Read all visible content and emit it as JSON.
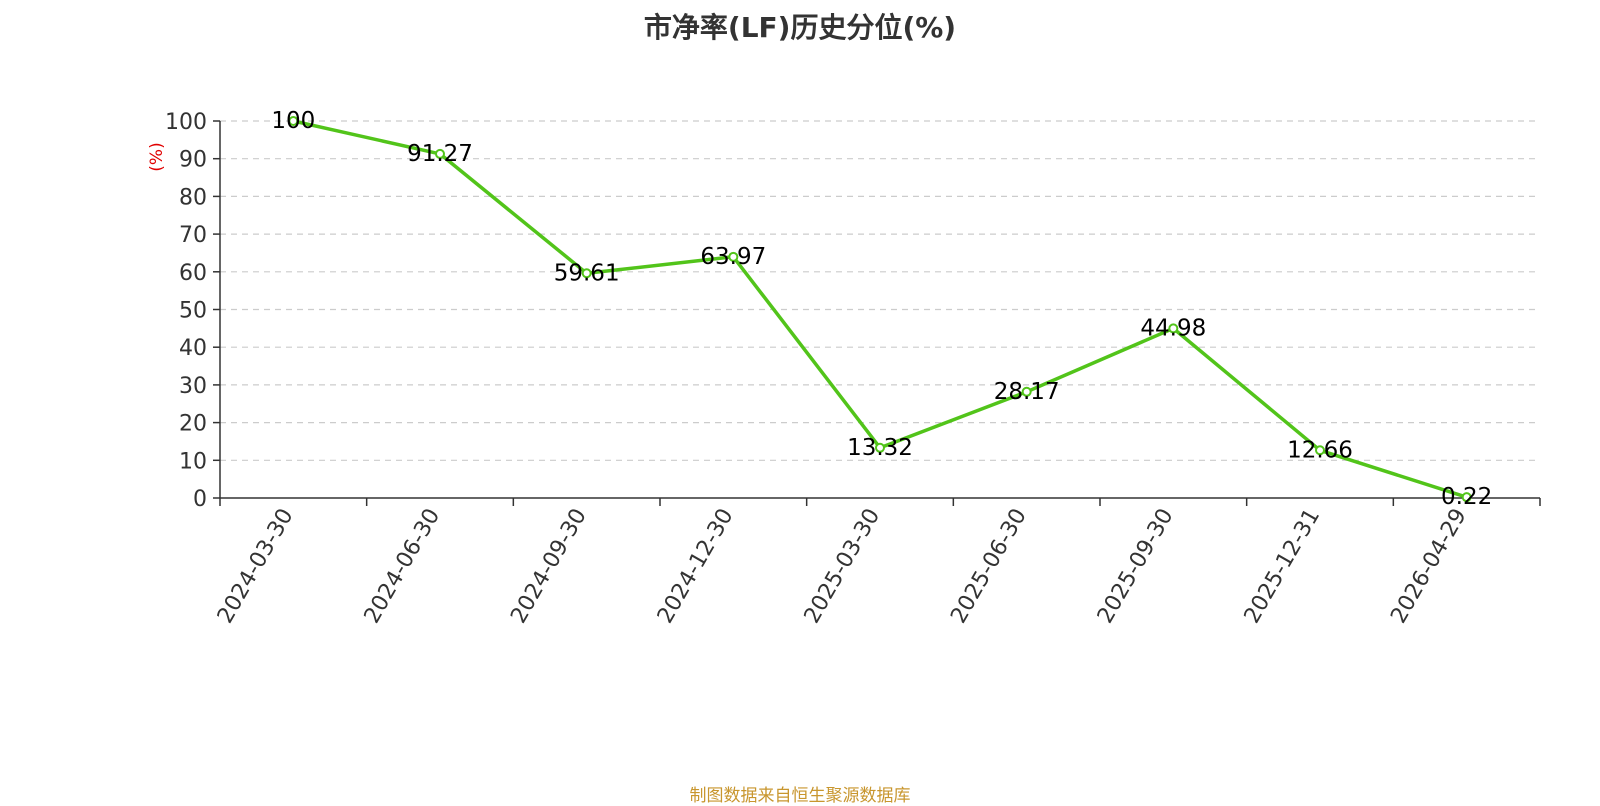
{
  "chart_data": {
    "type": "line",
    "title": "市净率(LF)历史分位(%)",
    "ylabel": "(%)",
    "xlabel": "",
    "ylim": [
      0,
      100
    ],
    "yticks": [
      0,
      10,
      20,
      30,
      40,
      50,
      60,
      70,
      80,
      90,
      100
    ],
    "grid": true,
    "categories": [
      "2024-03-30",
      "2024-06-30",
      "2024-09-30",
      "2024-12-30",
      "2025-03-30",
      "2025-06-30",
      "2025-09-30",
      "2025-12-31",
      "2026-04-29"
    ],
    "series": [
      {
        "values": [
          100,
          91.27,
          59.61,
          63.97,
          13.32,
          28.17,
          44.98,
          12.66,
          0.22
        ]
      }
    ],
    "data_labels": [
      "100",
      "91.27",
      "59.61",
      "63.97",
      "13.32",
      "28.17",
      "44.98",
      "12.66",
      "0.22"
    ]
  },
  "colors": {
    "line": "#52c41a",
    "axis": "#333333",
    "grid": "#cccccc",
    "ylabel": "#e00000",
    "source": "#c8962e"
  },
  "source_note": "制图数据来自恒生聚源数据库"
}
